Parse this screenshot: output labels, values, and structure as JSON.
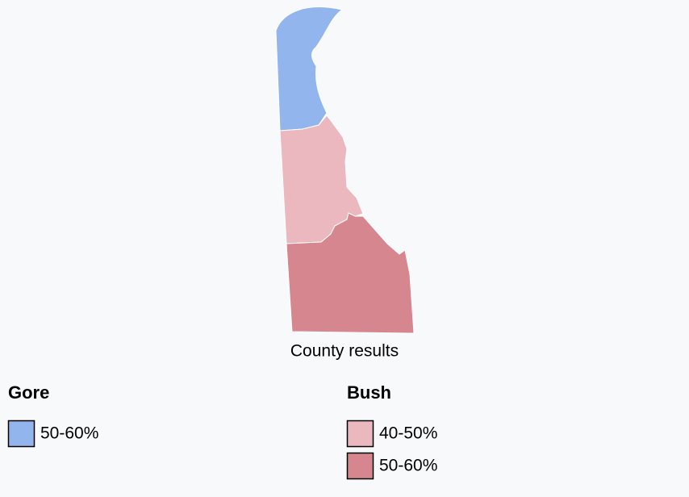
{
  "caption": "County results",
  "legend": [
    {
      "title": "Gore",
      "items": [
        {
          "label": "50-60%",
          "color": "#93b5ee"
        }
      ]
    },
    {
      "title": "Bush",
      "items": [
        {
          "label": "40-50%",
          "color": "#ebb8c0"
        },
        {
          "label": "50-60%",
          "color": "#d6868f"
        }
      ]
    }
  ]
}
